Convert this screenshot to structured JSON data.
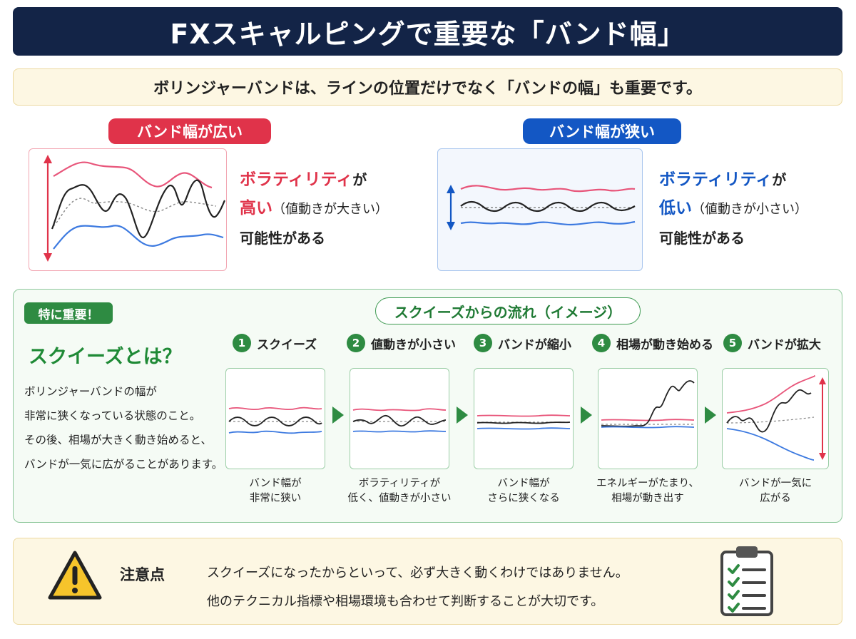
{
  "title": "FXスキャルピングで重要な「バンド幅」",
  "intro": "ボリンジャーバンドは、ラインの位置だけでなく「バンドの幅」も重要です。",
  "wide": {
    "label": "バンド幅が広い",
    "line1_accent": "ボラティリティ",
    "line1_rest": "が",
    "line2_accent": "高い",
    "line2_paren": "（値動きが大きい）",
    "line3": "可能性がある"
  },
  "narrow": {
    "label": "バンド幅が狭い",
    "line1_accent": "ボラティリティ",
    "line1_rest": "が",
    "line2_accent": "低い",
    "line2_paren": "（値動きが小さい）",
    "line3": "可能性がある"
  },
  "squeeze": {
    "tag": "特に重要！",
    "heading": "スクイーズとは？",
    "desc": [
      "ボリンジャーバンドの幅が",
      "非常に狭くなっている状態のこと。",
      "その後、相場が大きく動き始めると、",
      "バンドが一気に広がることがあります。"
    ],
    "flow_title": "スクイーズからの流れ（イメージ）",
    "steps": [
      {
        "num": "1",
        "label": "スクイーズ",
        "caption": [
          "バンド幅が",
          "非常に狭い"
        ]
      },
      {
        "num": "2",
        "label": "値動きが小さい",
        "caption": [
          "ボラティリティが",
          "低く、値動きが小さい"
        ]
      },
      {
        "num": "3",
        "label": "バンドが縮小",
        "caption": [
          "バンド幅が",
          "さらに狭くなる"
        ]
      },
      {
        "num": "4",
        "label": "相場が動き始める",
        "caption": [
          "エネルギーがたまり、",
          "相場が動き出す"
        ]
      },
      {
        "num": "5",
        "label": "バンドが拡大",
        "caption": [
          "バンドが一気に",
          "広がる"
        ]
      }
    ]
  },
  "caution": {
    "title": "注意点",
    "lines": [
      "スクイーズになったからといって、必ず大きく動くわけではありません。",
      "他のテクニカル指標や相場環境も合わせて判断することが大切です。"
    ]
  },
  "icons": {
    "warning": "warning-icon",
    "clipboard": "clipboard-checklist-icon",
    "arrow": "play-arrow-icon"
  },
  "colors": {
    "navy": "#132447",
    "upper_band": "#e8557a",
    "lower_band": "#3d7ae0",
    "price": "#222222",
    "ma": "#888888",
    "green": "#2e8b42",
    "red": "#e0334a",
    "blue": "#1357c4"
  }
}
